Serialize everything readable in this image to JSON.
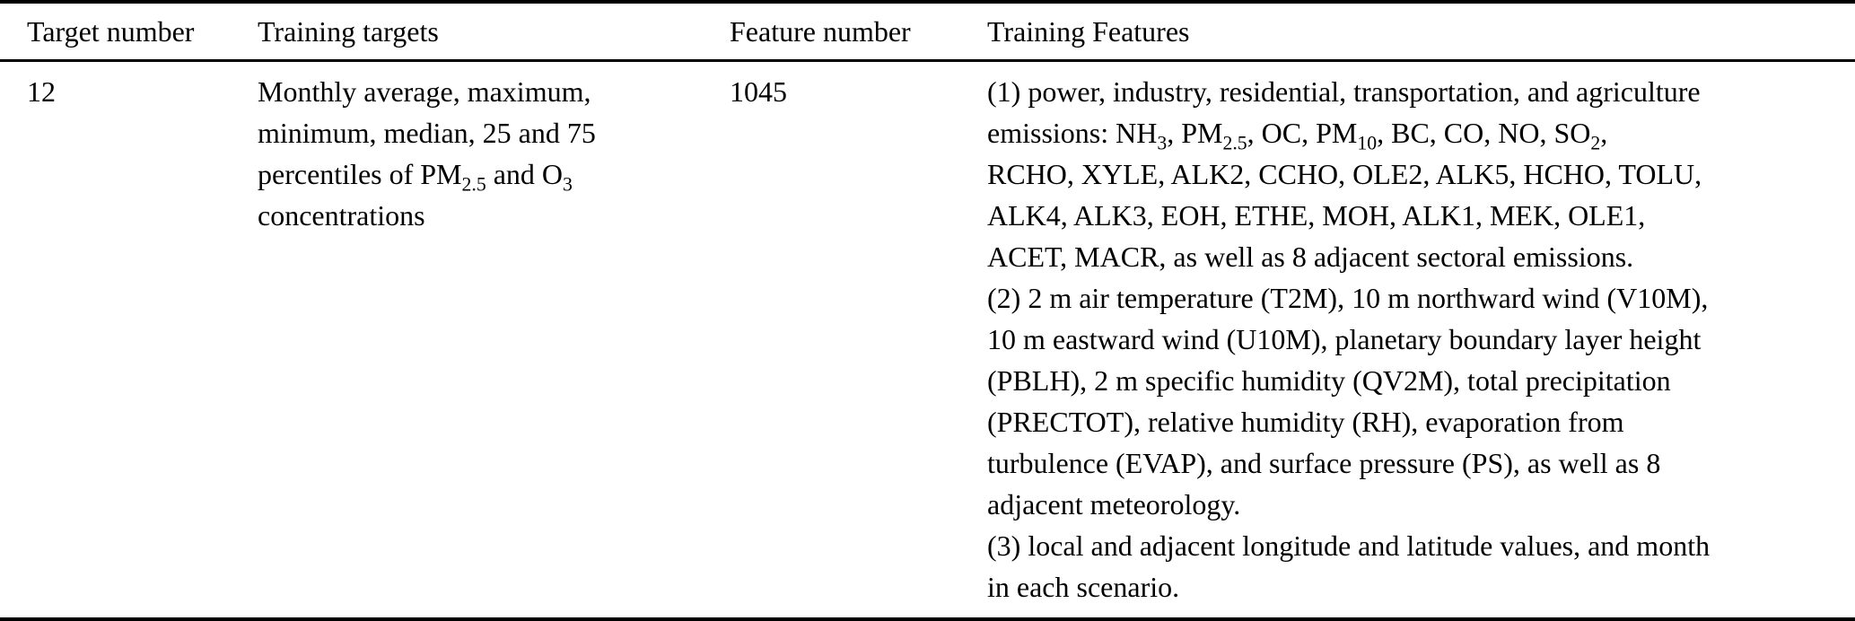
{
  "colors": {
    "text": "#000000",
    "background": "#ffffff",
    "rule": "#000000"
  },
  "table": {
    "columns": [
      {
        "id": "target_number",
        "label": "Target number"
      },
      {
        "id": "training_targets",
        "label": "Training targets"
      },
      {
        "id": "feature_number",
        "label": "Feature number"
      },
      {
        "id": "training_features",
        "label": "Training Features"
      }
    ],
    "rows": [
      {
        "target_number": "12",
        "training_targets": "Monthly average, maximum,\nminimum, median, 25 and 75\npercentiles of PM_{2.5} and O_{3}\nconcentrations",
        "feature_number": "1045",
        "training_features": [
          "(1) power, industry, residential, transportation, and agriculture\nemissions: NH_{3}, PM_{2.5}, OC, PM_{10}, BC, CO, NO, SO_{2},\nRCHO, XYLE, ALK2, CCHO, OLE2, ALK5, HCHO, TOLU,\nALK4, ALK3, EOH, ETHE, MOH, ALK1, MEK, OLE1,\nACET, MACR, as well as 8 adjacent sectoral emissions.",
          "(2) 2 m air temperature (T2M), 10 m northward wind (V10M),\n10 m eastward wind (U10M), planetary boundary layer height\n(PBLH), 2 m specific humidity (QV2M), total precipitation\n(PRECTOT), relative humidity (RH), evaporation from\nturbulence (EVAP), and surface pressure (PS), as well as 8\nadjacent meteorology.",
          "(3) local and adjacent longitude and latitude values, and month\nin each scenario."
        ]
      }
    ]
  }
}
